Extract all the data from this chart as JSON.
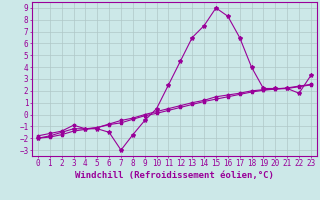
{
  "xlabel": "Windchill (Refroidissement éolien,°C)",
  "x_values": [
    0,
    1,
    2,
    3,
    4,
    5,
    6,
    7,
    8,
    9,
    10,
    11,
    12,
    13,
    14,
    15,
    16,
    17,
    18,
    19,
    20,
    21,
    22,
    23
  ],
  "s1": [
    -2.0,
    -1.8,
    -1.5,
    -1.2,
    -1.2,
    -1.2,
    -1.5,
    -3.0,
    -1.7,
    -0.5,
    0.5,
    2.5,
    4.5,
    6.5,
    7.5,
    9.0,
    8.3,
    6.5,
    4.0,
    2.2,
    2.2,
    2.2,
    1.8,
    3.3
  ],
  "s2": [
    -1.8,
    -1.6,
    -1.4,
    -0.9,
    -1.2,
    -1.1,
    -0.8,
    -0.5,
    -0.3,
    0.0,
    0.25,
    0.5,
    0.75,
    1.0,
    1.2,
    1.5,
    1.65,
    1.8,
    2.0,
    2.1,
    2.15,
    2.2,
    2.35,
    2.5
  ],
  "s3": [
    -2.0,
    -1.9,
    -1.7,
    -1.4,
    -1.25,
    -1.1,
    -0.85,
    -0.7,
    -0.4,
    -0.1,
    0.1,
    0.35,
    0.6,
    0.85,
    1.1,
    1.3,
    1.5,
    1.7,
    1.9,
    2.05,
    2.15,
    2.25,
    2.4,
    2.55
  ],
  "color": "#990099",
  "bg_color": "#cce8e8",
  "grid_color": "#b0c8c8",
  "xlim": [
    -0.5,
    23.5
  ],
  "ylim": [
    -3.5,
    9.5
  ],
  "xticks": [
    0,
    1,
    2,
    3,
    4,
    5,
    6,
    7,
    8,
    9,
    10,
    11,
    12,
    13,
    14,
    15,
    16,
    17,
    18,
    19,
    20,
    21,
    22,
    23
  ],
  "yticks": [
    -3,
    -2,
    -1,
    0,
    1,
    2,
    3,
    4,
    5,
    6,
    7,
    8,
    9
  ],
  "marker": "*",
  "markersize": 3,
  "linewidth": 0.8,
  "xlabel_fontsize": 6.5,
  "tick_fontsize": 5.5
}
